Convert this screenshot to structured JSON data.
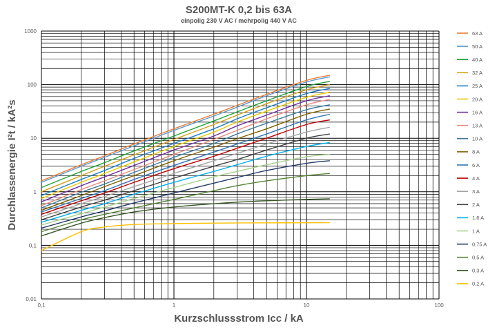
{
  "chart_data": {
    "type": "line",
    "title": "S200MT-K 0,2 bis 63A",
    "subtitle": "einpolig 230 V AC / mehrpolig  440 V AC",
    "xlabel": "Kurzschlussstrom Icc / kA",
    "ylabel": "Durchlassenergie I²t / kA²s",
    "x_scale": "log",
    "y_scale": "log",
    "xlim": [
      0.1,
      100
    ],
    "ylim": [
      0.01,
      1000
    ],
    "x_ticks": [
      "0,1",
      "1",
      "10",
      "100"
    ],
    "y_ticks": [
      "0,01",
      "0,1",
      "1",
      "10",
      "100",
      "1000"
    ],
    "grid": true,
    "legend_position": "right",
    "x": [
      0.1,
      0.2,
      0.3,
      0.5,
      1,
      2,
      3,
      5,
      10,
      15
    ],
    "series": [
      {
        "name": "63 A",
        "color": "#ED7D31",
        "values": [
          1.6,
          3.2,
          4.7,
          7.8,
          15,
          28,
          41,
          66,
          120,
          150
        ]
      },
      {
        "name": "50 A",
        "color": "#5B9BD5",
        "values": [
          1.5,
          3.0,
          4.4,
          7.2,
          14,
          26,
          38,
          62,
          112,
          140
        ]
      },
      {
        "name": "40 A",
        "color": "#1FA33A",
        "values": [
          1.2,
          2.4,
          3.5,
          5.8,
          11,
          21,
          31,
          50,
          92,
          115
        ]
      },
      {
        "name": "32 A",
        "color": "#D4A017",
        "values": [
          1.0,
          2.0,
          3.0,
          4.9,
          9.5,
          18,
          27,
          44,
          80,
          100
        ]
      },
      {
        "name": "25 A",
        "color": "#1F7FC4",
        "values": [
          0.85,
          1.7,
          2.5,
          4.2,
          8.0,
          15,
          23,
          37,
          68,
          85
        ]
      },
      {
        "name": "20 A",
        "color": "#E8C800",
        "values": [
          0.75,
          1.5,
          2.2,
          3.6,
          7.0,
          13,
          20,
          32,
          58,
          72
        ]
      },
      {
        "name": "16 A",
        "color": "#7030A0",
        "values": [
          0.65,
          1.3,
          1.9,
          3.1,
          6.0,
          11,
          17,
          27,
          50,
          62
        ]
      },
      {
        "name": "13 A",
        "color": "#E78A82",
        "values": [
          0.55,
          1.1,
          1.6,
          2.6,
          5.0,
          9.5,
          14,
          23,
          42,
          53
        ]
      },
      {
        "name": "10 A",
        "color": "#3E7E9C",
        "values": [
          0.5,
          0.98,
          1.4,
          2.3,
          4.4,
          8.0,
          12,
          19,
          34,
          42
        ]
      },
      {
        "name": "8 A",
        "color": "#7F6000",
        "values": [
          0.45,
          0.85,
          1.25,
          2.0,
          3.8,
          6.8,
          9.8,
          15,
          28,
          35
        ]
      },
      {
        "name": "6 A",
        "color": "#2E75B6",
        "values": [
          0.42,
          0.75,
          1.05,
          1.7,
          3.1,
          5.5,
          7.8,
          12,
          22,
          28
        ]
      },
      {
        "name": "4 A",
        "color": "#C00000",
        "values": [
          0.38,
          0.68,
          0.95,
          1.5,
          2.7,
          4.6,
          6.5,
          10,
          18,
          22
        ]
      },
      {
        "name": "3 A",
        "color": "#A5A5A5",
        "values": [
          0.34,
          0.6,
          0.82,
          1.25,
          2.2,
          3.8,
          5.2,
          7.8,
          13,
          16
        ]
      },
      {
        "name": "2 A",
        "color": "#404040",
        "values": [
          0.3,
          0.52,
          0.7,
          1.05,
          1.8,
          3.0,
          4.0,
          6.0,
          10,
          12
        ]
      },
      {
        "name": "1,6 A",
        "color": "#00B0F0",
        "values": [
          0.27,
          0.45,
          0.6,
          0.9,
          1.5,
          2.4,
          3.2,
          4.6,
          7.0,
          8.3
        ]
      },
      {
        "name": "1 A",
        "color": "#A9D18E",
        "values": [
          0.24,
          0.39,
          0.52,
          0.75,
          1.2,
          1.9,
          2.4,
          3.2,
          4.5,
          5.0
        ]
      },
      {
        "name": "0,75 A",
        "color": "#203864",
        "values": [
          0.21,
          0.34,
          0.44,
          0.62,
          0.95,
          1.45,
          1.85,
          2.5,
          3.4,
          3.8
        ]
      },
      {
        "name": "0,5 A",
        "color": "#548235",
        "values": [
          0.18,
          0.3,
          0.38,
          0.5,
          0.72,
          1.05,
          1.3,
          1.6,
          2.0,
          2.2
        ]
      },
      {
        "name": "0,3 A",
        "color": "#375623",
        "values": [
          0.15,
          0.26,
          0.33,
          0.42,
          0.52,
          0.6,
          0.64,
          0.68,
          0.72,
          0.74
        ]
      },
      {
        "name": "0,2 A",
        "color": "#FFC000",
        "values": [
          0.08,
          0.18,
          0.22,
          0.245,
          0.255,
          0.26,
          0.262,
          0.263,
          0.264,
          0.265
        ]
      }
    ]
  }
}
